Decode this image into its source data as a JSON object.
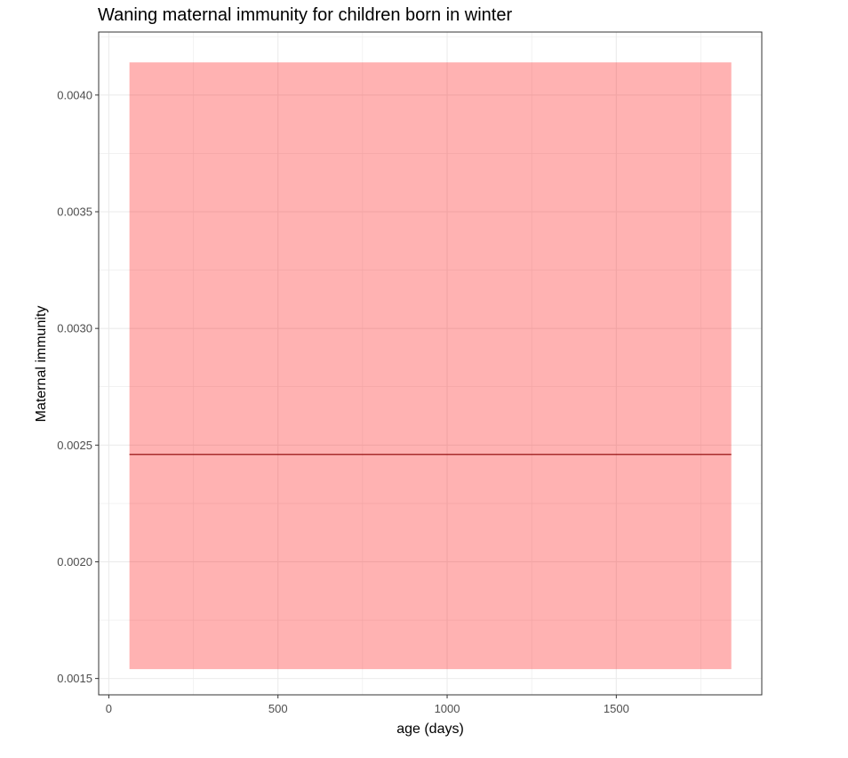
{
  "chart_data": {
    "type": "line",
    "title": "Waning maternal immunity for children born in winter",
    "xlabel": "age (days)",
    "ylabel": "Maternal immunity",
    "xlim": [
      -30,
      1930
    ],
    "ylim": [
      0.00143,
      0.00427
    ],
    "x_ticks": [
      0,
      500,
      1000,
      1500
    ],
    "x_tick_labels": [
      "0",
      "500",
      "1000",
      "1500"
    ],
    "y_ticks": [
      0.0015,
      0.002,
      0.0025,
      0.003,
      0.0035,
      0.004
    ],
    "y_tick_labels": [
      "0.0015",
      "0.0020",
      "0.0025",
      "0.0030",
      "0.0035",
      "0.0040"
    ],
    "grid": true,
    "series": [
      {
        "x": [
          61,
          1840
        ],
        "y": [
          0.00246,
          0.00246
        ],
        "lower": [
          0.00154,
          0.00154
        ],
        "upper": [
          0.00414,
          0.00414
        ],
        "line_color": "#8b0000",
        "band_color": "#ff0000"
      }
    ]
  }
}
